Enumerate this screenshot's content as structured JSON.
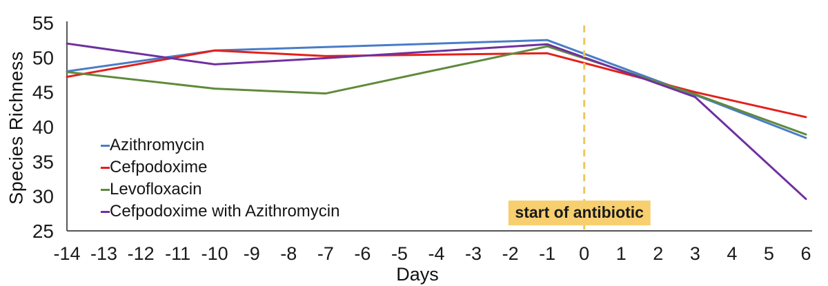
{
  "chart_data": {
    "type": "line",
    "title": "",
    "xlabel": "Days",
    "ylabel": "Species Richness",
    "xlim": [
      -14,
      6
    ],
    "ylim": [
      25,
      55
    ],
    "grid": false,
    "legend_position": "inside-left",
    "xticks": [
      -14,
      -13,
      -12,
      -11,
      -10,
      -9,
      -8,
      -7,
      -6,
      -5,
      -4,
      -3,
      -2,
      -1,
      0,
      1,
      2,
      3,
      4,
      5,
      6
    ],
    "yticks": [
      25,
      30,
      35,
      40,
      45,
      50,
      55
    ],
    "x": [
      -14,
      -10,
      -7,
      -1,
      3,
      6
    ],
    "series": [
      {
        "name": "Azithromycin",
        "color": "#4A7CC7",
        "values": [
          48.0,
          51.0,
          51.5,
          52.5,
          44.6,
          38.4
        ]
      },
      {
        "name": "Cefpodoxime",
        "color": "#E3201B",
        "values": [
          47.2,
          51.0,
          50.2,
          50.6,
          45.0,
          41.4
        ]
      },
      {
        "name": "Levofloxacin",
        "color": "#5F8A3C",
        "values": [
          47.9,
          45.5,
          44.8,
          51.6,
          44.7,
          38.9
        ]
      },
      {
        "name": "Cefpodoxime with Azithromycin",
        "color": "#7030A0",
        "values": [
          52.0,
          49.0,
          49.9,
          51.9,
          44.3,
          29.6
        ]
      }
    ],
    "annotation": {
      "vline_x": 0,
      "vline_color": "#EDC75C",
      "label": "start of antibiotic",
      "label_bg": "#F7CF6F",
      "label_color": "#1a1a1a"
    },
    "axis_color": "#3b3b3b",
    "tick_label_color": "#1a1a1a"
  }
}
